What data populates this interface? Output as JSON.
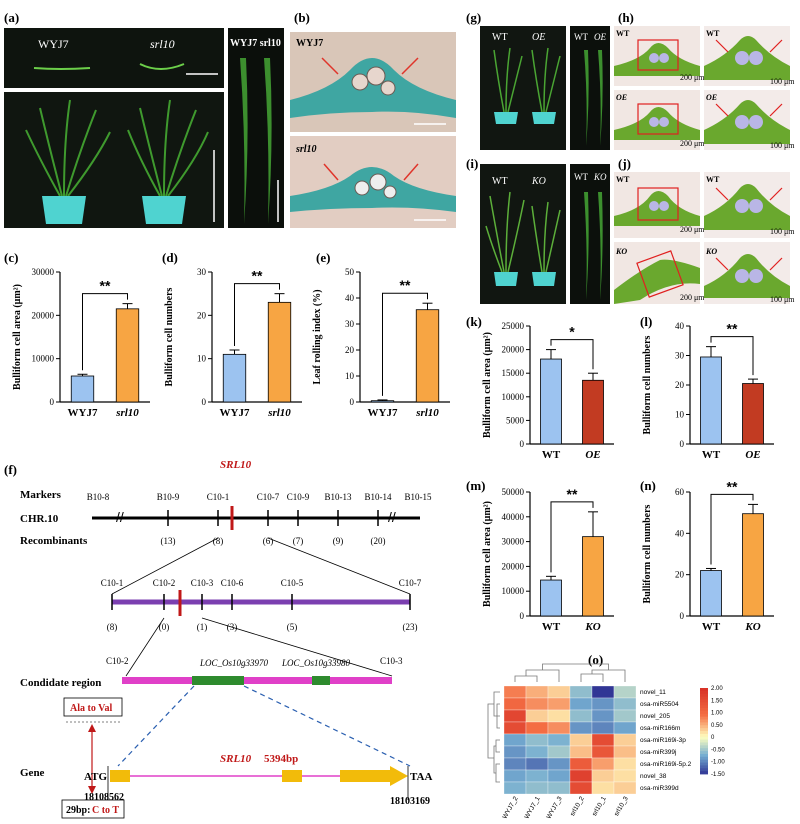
{
  "panel_labels": [
    "(a)",
    "(b)",
    "(c)",
    "(d)",
    "(e)",
    "(f)",
    "(g)",
    "(h)",
    "(i)",
    "(j)",
    "(k)",
    "(l)",
    "(m)",
    "(n)",
    "(o)"
  ],
  "photo_a": {
    "left_label": "WYJ7",
    "right_label": "srl10",
    "leaf_labels": "WYJ7 srl10"
  },
  "photo_b": {
    "top_label": "WYJ7",
    "bottom_label": "srl10"
  },
  "photo_g": {
    "wt": "WT",
    "oe": "OE"
  },
  "photo_h": {
    "wt": "WT",
    "oe": "OE",
    "scale_big": "200 μm",
    "scale_small": "100 μm"
  },
  "photo_i": {
    "wt": "WT",
    "ko": "KO"
  },
  "photo_j": {
    "wt": "WT",
    "ko": "KO",
    "scale_big": "200 μm",
    "scale_small": "100 μm"
  },
  "colors": {
    "blue": "#9cc3f0",
    "orange": "#f7a543",
    "red": "#c23b22",
    "purple": "#7b3fb0",
    "magenta": "#e040c8",
    "green": "#2e8b2e",
    "yellowbar": "#f2bb0a"
  },
  "chart_data": [
    {
      "id": "c",
      "type": "bar",
      "ylabel": "Bulliform cell area (μm²)",
      "categories": [
        "WYJ7",
        "srl10"
      ],
      "values": [
        6000,
        21500
      ],
      "errors": [
        400,
        1200
      ],
      "ylim": [
        0,
        30000
      ],
      "ticks": [
        0,
        10000,
        20000,
        30000
      ],
      "sig": "**",
      "colors": [
        "#9cc3f0",
        "#f7a543"
      ]
    },
    {
      "id": "d",
      "type": "bar",
      "ylabel": "Bulliform cell numbers",
      "categories": [
        "WYJ7",
        "srl10"
      ],
      "values": [
        11,
        23
      ],
      "errors": [
        1,
        2
      ],
      "ylim": [
        0,
        30
      ],
      "ticks": [
        0,
        10,
        20,
        30
      ],
      "sig": "**",
      "colors": [
        "#9cc3f0",
        "#f7a543"
      ]
    },
    {
      "id": "e",
      "type": "bar",
      "ylabel": "Leaf rolling index (%)",
      "categories": [
        "WYJ7",
        "srl10"
      ],
      "values": [
        0.5,
        35.5
      ],
      "errors": [
        0.3,
        2.5
      ],
      "ylim": [
        0,
        50
      ],
      "ticks": [
        0,
        10,
        20,
        30,
        40,
        50
      ],
      "sig": "**",
      "colors": [
        "#9cc3f0",
        "#f7a543"
      ]
    },
    {
      "id": "k",
      "type": "bar",
      "ylabel": "Bulliform cell area (μm²)",
      "categories": [
        "WT",
        "OE"
      ],
      "values": [
        18000,
        13500
      ],
      "errors": [
        2000,
        1500
      ],
      "ylim": [
        0,
        25000
      ],
      "ticks": [
        0,
        5000,
        10000,
        15000,
        20000,
        25000
      ],
      "sig": "*",
      "colors": [
        "#9cc3f0",
        "#c23b22"
      ]
    },
    {
      "id": "l",
      "type": "bar",
      "ylabel": "Bulliform cell numbers",
      "categories": [
        "WT",
        "OE"
      ],
      "values": [
        29.5,
        20.5
      ],
      "errors": [
        3.5,
        1.5
      ],
      "ylim": [
        0,
        40
      ],
      "ticks": [
        0,
        10,
        20,
        30,
        40
      ],
      "sig": "**",
      "colors": [
        "#9cc3f0",
        "#c23b22"
      ]
    },
    {
      "id": "m",
      "type": "bar",
      "ylabel": "Bulliform cell area (μm²)",
      "categories": [
        "WT",
        "KO"
      ],
      "values": [
        14500,
        32000
      ],
      "errors": [
        1500,
        10000
      ],
      "ylim": [
        0,
        50000
      ],
      "ticks": [
        0,
        10000,
        20000,
        30000,
        40000,
        50000
      ],
      "sig": "**",
      "colors": [
        "#9cc3f0",
        "#f7a543"
      ]
    },
    {
      "id": "n",
      "type": "bar",
      "ylabel": "Bulliform cell numbers",
      "categories": [
        "WT",
        "KO"
      ],
      "values": [
        22,
        49.5
      ],
      "errors": [
        1,
        4.5
      ],
      "ylim": [
        0,
        60
      ],
      "ticks": [
        0,
        20,
        40,
        60
      ],
      "sig": "**",
      "colors": [
        "#9cc3f0",
        "#f7a543"
      ]
    },
    {
      "id": "o",
      "type": "heatmap",
      "rows": [
        "novel_11",
        "osa-miR5504",
        "novel_205",
        "osa-miR166m",
        "osa-miR169i-3p",
        "osa-miR399j",
        "osa-miR169i-5p.2",
        "novel_38",
        "osa-miR399d"
      ],
      "cols": [
        "WYJ7_2",
        "WYJ7_1",
        "WYJ7_3",
        "srl10_2",
        "srl10_1",
        "srl10_3"
      ],
      "values": [
        [
          0.8,
          0.5,
          0.3,
          -0.6,
          -1.5,
          -0.4
        ],
        [
          1.0,
          0.7,
          0.6,
          -0.8,
          -0.9,
          -0.6
        ],
        [
          1.6,
          0.3,
          0.2,
          -0.6,
          -0.9,
          -0.5
        ],
        [
          1.5,
          0.9,
          0.7,
          -0.9,
          -1.0,
          -0.8
        ],
        [
          -0.8,
          -0.6,
          -0.7,
          0.3,
          1.5,
          0.3
        ],
        [
          -0.9,
          -0.7,
          -0.5,
          0.4,
          1.3,
          0.4
        ],
        [
          -1.0,
          -1.1,
          -0.9,
          1.2,
          0.6,
          0.2
        ],
        [
          -0.8,
          -0.7,
          -0.8,
          1.7,
          0.3,
          0.2
        ],
        [
          -0.7,
          -0.6,
          -0.6,
          1.5,
          0.2,
          0.3
        ]
      ],
      "scale_ticks": [
        "2.00",
        "1.50",
        "1.00",
        "0.50",
        "0",
        "-0.50",
        "-1.00",
        "-1.50"
      ],
      "zlim": [
        -1.5,
        2.0
      ]
    }
  ],
  "map_f": {
    "gene_title": "SRL10",
    "markers_label": "Markers",
    "chr_label": "CHR.10",
    "recomb_label": "Recombinants",
    "markers": [
      "B10-8",
      "B10-9",
      "C10-1",
      "C10-7",
      "C10-9",
      "B10-13",
      "B10-14",
      "B10-15"
    ],
    "recomb": [
      "(13)",
      "(8)",
      "(6)",
      "(7)",
      "(9)",
      "(20)"
    ],
    "fine_markers": [
      "C10-1",
      "C10-2",
      "C10-3",
      "C10-6",
      "C10-5",
      "C10-7"
    ],
    "fine_recomb": [
      "(8)",
      "(0)",
      "(1)",
      "(3)",
      "(5)",
      "(23)"
    ],
    "cand_label": "Condidate region",
    "cand_left": "C10-2",
    "cand_right": "C10-3",
    "gene1": "LOC_Os10g33970",
    "gene2": "LOC_Os10g33980",
    "gene_label": "Gene",
    "mut_aa": "Ala to Val",
    "mut_nt_prefix": "29bp:",
    "mut_nt": "C to T",
    "atg": "ATG",
    "taa": "TAA",
    "pos_left": "18108562",
    "pos_right": "18103169",
    "gene_name": "SRL10",
    "gene_len": "5394bp"
  }
}
